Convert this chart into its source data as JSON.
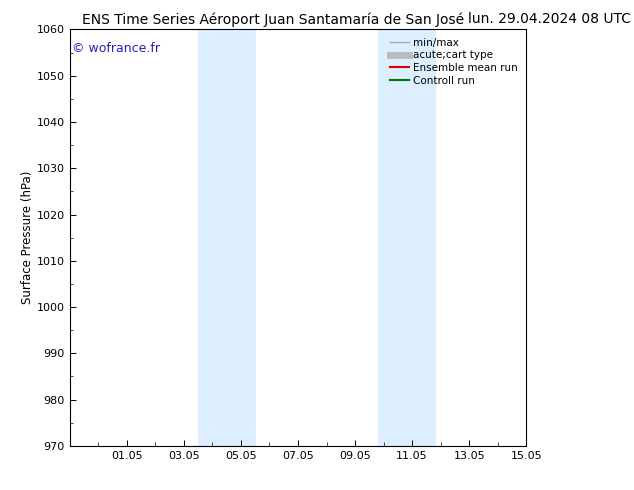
{
  "title_left": "ENS Time Series Aéroport Juan Santamaría de San José",
  "title_right": "lun. 29.04.2024 08 UTC",
  "ylabel": "Surface Pressure (hPa)",
  "ylim": [
    970,
    1060
  ],
  "yticks": [
    970,
    980,
    990,
    1000,
    1010,
    1020,
    1030,
    1040,
    1050,
    1060
  ],
  "xtick_labels": [
    "01.05",
    "03.05",
    "05.05",
    "07.05",
    "09.05",
    "11.05",
    "13.05",
    "15.05"
  ],
  "xtick_positions": [
    2,
    4,
    6,
    8,
    10,
    12,
    14,
    16
  ],
  "xlim": [
    0,
    16
  ],
  "shaded_bands": [
    {
      "x_start": 4.5,
      "x_end": 6.5
    },
    {
      "x_start": 10.8,
      "x_end": 12.8
    }
  ],
  "shaded_color": "#ddeeff",
  "shaded_edge_color": "#c0d8f0",
  "background_color": "#ffffff",
  "watermark_text": "© wofrance.fr",
  "watermark_color": "#2222bb",
  "legend_items": [
    {
      "label": "min/max",
      "color": "#aaaaaa",
      "lw": 1.0
    },
    {
      "label": "acute;cart type",
      "color": "#bbbbbb",
      "lw": 5
    },
    {
      "label": "Ensemble mean run",
      "color": "#dd0000",
      "lw": 1.5
    },
    {
      "label": "Controll run",
      "color": "#007700",
      "lw": 1.5
    }
  ],
  "title_fontsize": 10,
  "ylabel_fontsize": 8.5,
  "tick_fontsize": 8,
  "legend_fontsize": 7.5,
  "watermark_fontsize": 9
}
